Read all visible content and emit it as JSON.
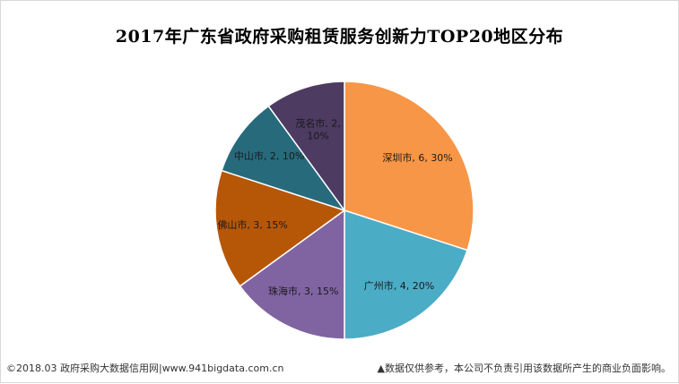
{
  "title": "2017年广东省政府采购租赁服务创新力TOP20地区分布",
  "footer": {
    "left": "©2018.03 政府采购大数据信用网|www.941bigdata.com.cn",
    "right": "▲数据仅供参考，本公司不负责引用该数据所产生的商业负面影响。"
  },
  "chart_data": {
    "type": "pie",
    "title": "2017年广东省政府采购租赁服务创新力TOP20地区分布",
    "slices": [
      {
        "label": "深圳市",
        "value": 6,
        "percent": "30%",
        "color": "#F79646",
        "text": [
          "深圳市, 6, 30%"
        ]
      },
      {
        "label": "广州市",
        "value": 4,
        "percent": "20%",
        "color": "#4BACC6",
        "text": [
          "广州市, 4, 20%"
        ]
      },
      {
        "label": "珠海市",
        "value": 3,
        "percent": "15%",
        "color": "#8064A2",
        "text": [
          "珠海市, 3, 15%"
        ]
      },
      {
        "label": "佛山市",
        "value": 3,
        "percent": "15%",
        "color": "#B65708",
        "text": [
          "佛山市, 3, 15%"
        ]
      },
      {
        "label": "中山市",
        "value": 2,
        "percent": "10%",
        "color": "#276A7C",
        "text": [
          "中山市, 2, 10%"
        ]
      },
      {
        "label": "茂名市",
        "value": 2,
        "percent": "10%",
        "color": "#4D3B62",
        "text": [
          "茂名市, 2,",
          "10%"
        ]
      }
    ]
  }
}
